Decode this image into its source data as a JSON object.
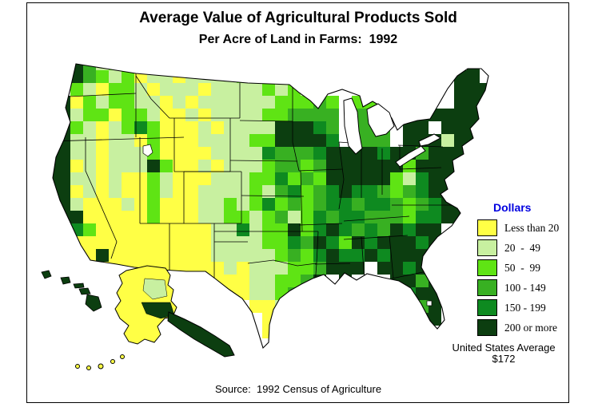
{
  "title": "Average Value of Agricultural Products Sold",
  "subtitle": "Per Acre of Land in Farms:  1992",
  "legend": {
    "title": "Dollars",
    "title_color": "#0000E0",
    "classes": [
      {
        "label": "Less than 20",
        "color": "#FFFF45"
      },
      {
        "label": "20  -  49",
        "color": "#C8F0A0"
      },
      {
        "label": "50  -  99",
        "color": "#5FE414"
      },
      {
        "label": "100 - 149",
        "color": "#38B022"
      },
      {
        "label": "150 - 199",
        "color": "#0E8A20"
      },
      {
        "label": "200 or more",
        "color": "#0C3E10"
      }
    ]
  },
  "annotation": {
    "line1": "United States Average",
    "line2": "$172"
  },
  "source": "Source:  1992 Census of Agriculture",
  "map_data": {
    "type": "choropleth",
    "region": "United States counties",
    "unit": "dollars per acre",
    "year": "1992",
    "us_average": 172,
    "palette": [
      "#FFFF45",
      "#C8F0A0",
      "#5FE414",
      "#38B022",
      "#0E8A20",
      "#0C3E10"
    ],
    "category_labels": [
      "Less than 20",
      "20 - 49",
      "50 - 99",
      "100 - 149",
      "150 - 199",
      "200 or more"
    ],
    "grid": [
      [
        "..531",
        "21101",
        "11121",
        "12112",
        "1....",
        ".....",
        "...5."
      ],
      [
        "..532",
        "12011",
        "01111",
        "21122",
        "21...",
        ".....",
        "..55."
      ],
      [
        "..210",
        "22101",
        "11011",
        "11212",
        "11...",
        ".....",
        "..555"
      ],
      [
        ".5021",
        "22110",
        "10111",
        "11122",
        "232.2",
        "2....",
        "..555"
      ],
      [
        ".5122",
        "02210",
        "01011",
        "11223",
        "333.3",
        "3..55",
        "55555"
      ],
      [
        ".5210",
        "12420",
        "00101",
        "11155",
        "543.3",
        "33.55",
        ".5555"
      ],
      [
        "55110",
        "11020",
        "00111",
        "12255",
        "554.3",
        "33.55",
        "51555"
      ],
      [
        "55110",
        "11120",
        "00011",
        "11433",
        "34555",
        "54553",
        "555.."
      ],
      [
        "55010",
        "11152",
        "00101",
        "11233",
        "23555",
        "55525",
        "55..."
      ],
      [
        "55110",
        "10021",
        "00011",
        "12242",
        "32555",
        "55214",
        "55..."
      ],
      [
        "55010",
        "10021",
        "00111",
        "12134",
        "23454",
        "43234",
        "55..."
      ],
      [
        "55100",
        "01020",
        "00112",
        "12423",
        "23443",
        "44323",
        "455.."
      ],
      [
        ".5500",
        "00020",
        "00112",
        "21231",
        "24344",
        "33324",
        "455.."
      ],
      [
        ".5420",
        "00000",
        "00011",
        "41225",
        "24543",
        "43545",
        "5...."
      ],
      [
        ".5000",
        "00000",
        "00011",
        "11224",
        "35425",
        "45554",
        "5...."
      ],
      [
        ".5305",
        "00000",
        "00011",
        "11123",
        "24544",
        "54555",
        "5...."
      ],
      [
        "...00",
        "00000",
        "00001",
        "01112",
        "23555",
        ".5545",
        "5...."
      ],
      [
        ".....",
        ".....",
        "...00",
        "01122",
        "35.5.",
        "..553",
        "5...."
      ],
      [
        ".....",
        ".....",
        "....0",
        "01123",
        "2....",
        "..545",
        "5...."
      ],
      [
        ".....",
        ".....",
        ".....",
        ".0012",
        "2....",
        "...53",
        "5...."
      ],
      [
        ".....",
        ".....",
        ".....",
        "..00.",
        ".....",
        "....5",
        "5...."
      ],
      [
        ".....",
        ".....",
        ".....",
        "..04.",
        ".....",
        "....5",
        "....."
      ],
      [
        ".....",
        ".....",
        ".....",
        "...5.",
        ".....",
        ".....",
        "....."
      ],
      [
        ".....",
        ".....",
        ".....",
        ".....",
        ".....",
        ".....",
        "....."
      ]
    ],
    "alaska": {
      "body": 0,
      "interior_patch": 1,
      "south_coast": 5,
      "panhandle": 5,
      "aleutians": 0
    },
    "hawaii": 5
  }
}
